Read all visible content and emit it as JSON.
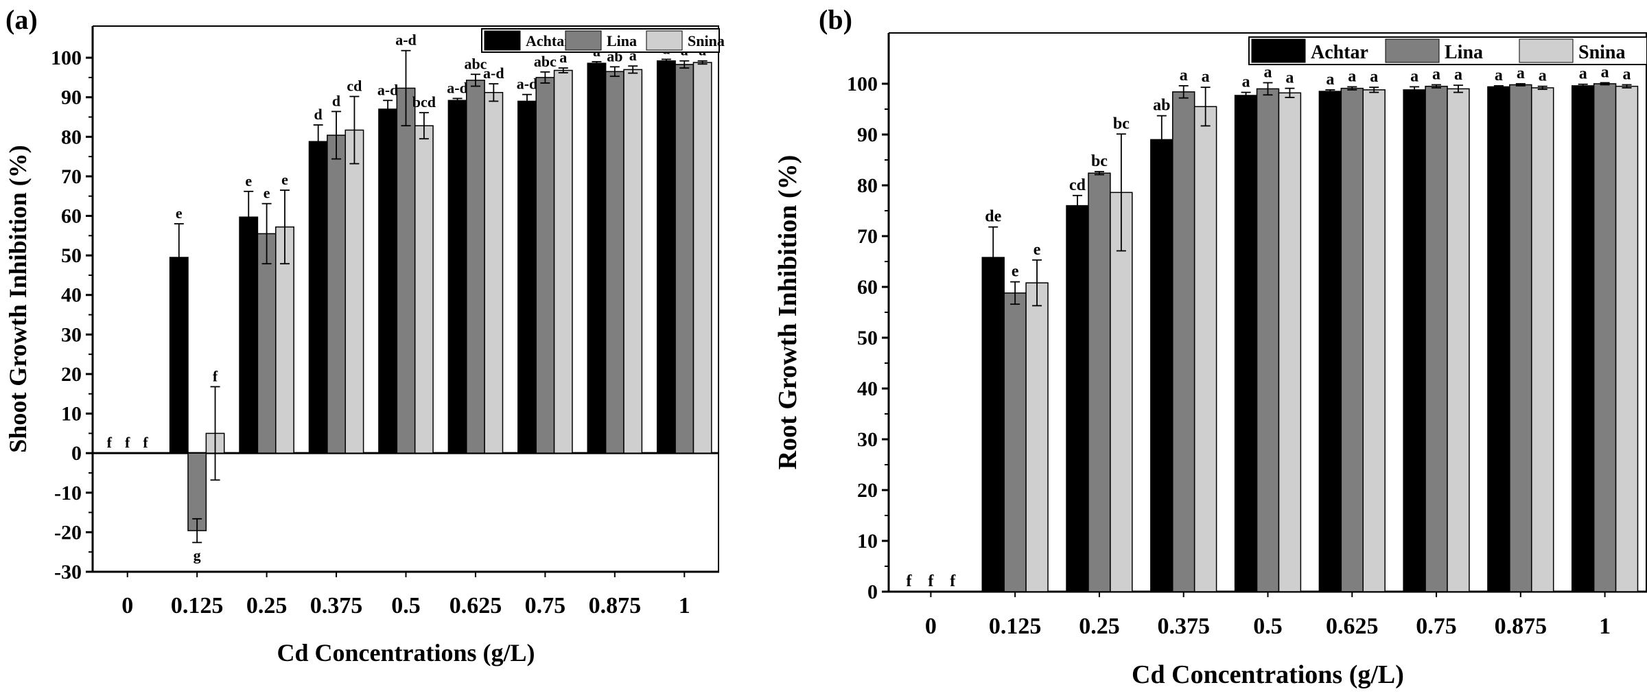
{
  "colors": {
    "Achtar": "#000000",
    "Lina": "#7f7f7f",
    "Snina": "#cfcfcf"
  },
  "chart_data": [
    {
      "panel": "(a)",
      "type": "bar",
      "title": "",
      "xlabel": "Cd Concentrations (g/L)",
      "ylabel": "Shoot Growth Inhibition (%)",
      "ylim": [
        -30,
        108
      ],
      "yticks": [
        -30,
        -20,
        -10,
        0,
        10,
        20,
        30,
        40,
        50,
        60,
        70,
        80,
        90,
        100
      ],
      "categories": [
        "0",
        "0.125",
        "0.25",
        "0.375",
        "0.5",
        "0.625",
        "0.75",
        "0.875",
        "1"
      ],
      "legend_position": "top-right",
      "series": [
        {
          "name": "Achtar",
          "values": [
            0,
            49.5,
            59.7,
            78.8,
            87.0,
            89.2,
            89.0,
            98.6,
            99.2
          ],
          "errors": [
            0,
            8.5,
            6.5,
            4.2,
            2.2,
            0.5,
            1.7,
            0.4,
            0.4
          ],
          "letters": [
            "f",
            "e",
            "e",
            "d",
            "a-d",
            "a-d",
            "a-d",
            "a",
            "a"
          ]
        },
        {
          "name": "Lina",
          "values": [
            0,
            -19.6,
            55.5,
            80.4,
            92.3,
            94.3,
            95.0,
            96.5,
            98.3
          ],
          "errors": [
            0,
            3.0,
            7.6,
            6.0,
            9.5,
            1.5,
            1.4,
            1.2,
            0.9
          ],
          "letters": [
            "f",
            "g",
            "e",
            "d",
            "a-d",
            "abc",
            "abc",
            "ab",
            "a"
          ]
        },
        {
          "name": "Snina",
          "values": [
            0,
            5.0,
            57.2,
            81.7,
            82.8,
            91.2,
            96.8,
            97.0,
            98.8
          ],
          "errors": [
            0,
            11.8,
            9.3,
            8.5,
            3.3,
            2.2,
            0.6,
            0.9,
            0.4
          ],
          "letters": [
            "f",
            "f",
            "e",
            "cd",
            "bcd",
            "a-d",
            "a",
            "a",
            "a"
          ]
        }
      ]
    },
    {
      "panel": "(b)",
      "type": "bar",
      "title": "",
      "xlabel": "Cd Concentrations (g/L)",
      "ylabel": "Root Growth Inhibition (%)",
      "ylim": [
        0,
        110
      ],
      "yticks": [
        0,
        10,
        20,
        30,
        40,
        50,
        60,
        70,
        80,
        90,
        100
      ],
      "categories": [
        "0",
        "0.125",
        "0.25",
        "0.375",
        "0.5",
        "0.625",
        "0.75",
        "0.875",
        "1"
      ],
      "legend_position": "top-right",
      "series": [
        {
          "name": "Achtar",
          "values": [
            0,
            65.8,
            76.0,
            89.0,
            97.7,
            98.5,
            98.8,
            99.4,
            99.6
          ],
          "errors": [
            0,
            6.0,
            2.0,
            4.7,
            0.6,
            0.3,
            0.6,
            0.2,
            0.3
          ],
          "letters": [
            "f",
            "de",
            "cd",
            "ab",
            "a",
            "a",
            "a",
            "a",
            "a"
          ]
        },
        {
          "name": "Lina",
          "values": [
            0,
            58.8,
            82.4,
            98.4,
            99.0,
            99.1,
            99.5,
            99.8,
            100.0
          ],
          "errors": [
            0,
            2.2,
            0.3,
            1.2,
            1.2,
            0.3,
            0.3,
            0.2,
            0.2
          ],
          "letters": [
            "f",
            "e",
            "bc",
            "a",
            "a",
            "a",
            "a",
            "a",
            "a"
          ]
        },
        {
          "name": "Snina",
          "values": [
            0,
            60.8,
            78.6,
            95.5,
            98.2,
            98.8,
            99.0,
            99.2,
            99.5
          ],
          "errors": [
            0,
            4.5,
            11.5,
            3.8,
            0.9,
            0.5,
            0.7,
            0.3,
            0.3
          ],
          "letters": [
            "f",
            "e",
            "bc",
            "a",
            "a",
            "a",
            "a",
            "a",
            "a"
          ]
        }
      ]
    }
  ]
}
